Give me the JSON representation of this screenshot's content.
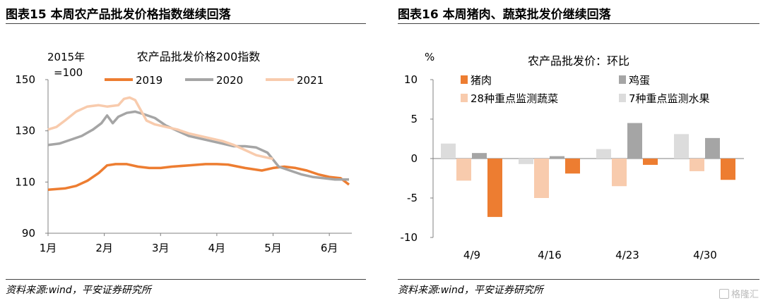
{
  "left": {
    "panel_title": "图表15 本周农产品批发价格指数继续回落",
    "source": "资料来源:wind，平安证券研究所"
  },
  "right": {
    "panel_title": "图表16 本周猪肉、蔬菜批发价继续回落",
    "source": "资料来源:wind，平安证券研究所"
  },
  "watermark": "格隆汇",
  "chart_data": [
    {
      "type": "line",
      "title": "农产品批发价格200指数",
      "unit_label": [
        "2015年",
        "=100"
      ],
      "ylim": [
        90,
        150
      ],
      "yticks": [
        90,
        110,
        130,
        150
      ],
      "xlim": [
        1,
        6.4
      ],
      "xtick_labels": [
        "1月",
        "2月",
        "3月",
        "4月",
        "5月",
        "6月"
      ],
      "grid": false,
      "legend_position": "top",
      "series": [
        {
          "name": "2019",
          "color": "#ED7D31",
          "x": [
            1.0,
            1.3,
            1.5,
            1.7,
            1.9,
            2.05,
            2.2,
            2.4,
            2.6,
            2.8,
            3.0,
            3.2,
            3.5,
            3.8,
            4.0,
            4.2,
            4.5,
            4.8,
            5.0,
            5.2,
            5.4,
            5.6,
            5.8,
            6.0,
            6.2,
            6.35
          ],
          "y": [
            107,
            107.5,
            108.5,
            110.5,
            113.5,
            116.5,
            117,
            117,
            116,
            115.5,
            115.5,
            116,
            116.5,
            117,
            117,
            116.8,
            115.5,
            114.5,
            115.5,
            116,
            115.5,
            114.5,
            113,
            112,
            111.5,
            109
          ]
        },
        {
          "name": "2020",
          "color": "#A5A5A5",
          "x": [
            1.0,
            1.2,
            1.4,
            1.6,
            1.8,
            1.95,
            2.05,
            2.15,
            2.25,
            2.4,
            2.55,
            2.7,
            2.9,
            3.1,
            3.3,
            3.5,
            3.7,
            3.9,
            4.1,
            4.3,
            4.5,
            4.7,
            4.9,
            5.1,
            5.3,
            5.5,
            5.7,
            5.9,
            6.1,
            6.35
          ],
          "y": [
            124.5,
            125,
            126.5,
            128,
            130.5,
            133,
            136,
            133,
            135.5,
            137,
            137.5,
            136.5,
            135,
            132,
            130,
            128,
            127,
            126,
            125,
            124,
            124,
            123.5,
            121.5,
            116,
            114.5,
            113,
            112,
            111.5,
            111,
            111
          ]
        },
        {
          "name": "2021",
          "color": "#F8CBAD",
          "x": [
            1.0,
            1.15,
            1.3,
            1.5,
            1.7,
            1.9,
            2.05,
            2.25,
            2.35,
            2.45,
            2.55,
            2.65,
            2.75,
            2.9,
            3.1,
            3.3,
            3.5,
            3.7,
            3.9,
            4.1,
            4.3,
            4.5,
            4.7,
            4.9,
            5.0
          ],
          "y": [
            130.5,
            131.5,
            134,
            137.5,
            139.5,
            140,
            139.5,
            140,
            142.5,
            143,
            142,
            138,
            134,
            132.5,
            131.5,
            130.5,
            129,
            128,
            127,
            126,
            124.5,
            122.5,
            120.5,
            119.5,
            119
          ]
        }
      ]
    },
    {
      "type": "bar",
      "title": "农产品批发价：环比",
      "ylabel": "%",
      "ylim": [
        -10,
        10
      ],
      "yticks": [
        10,
        5,
        0,
        -5,
        -10
      ],
      "categories": [
        "4/9",
        "4/16",
        "4/23",
        "4/30"
      ],
      "grid": false,
      "legend_position": "top",
      "series": [
        {
          "name": "7种重点监测水果",
          "color": "#DCDCDC",
          "values": [
            1.9,
            -0.7,
            1.2,
            3.1
          ]
        },
        {
          "name": "28种重点监测蔬菜",
          "color": "#F8CBAD",
          "values": [
            -2.8,
            -5.0,
            -3.5,
            -1.6
          ]
        },
        {
          "name": "鸡蛋",
          "color": "#A5A5A5",
          "values": [
            0.7,
            0.3,
            4.5,
            2.6
          ]
        },
        {
          "name": "猪肉",
          "color": "#ED7D31",
          "values": [
            -7.4,
            -1.9,
            -0.8,
            -2.7
          ]
        }
      ]
    }
  ]
}
